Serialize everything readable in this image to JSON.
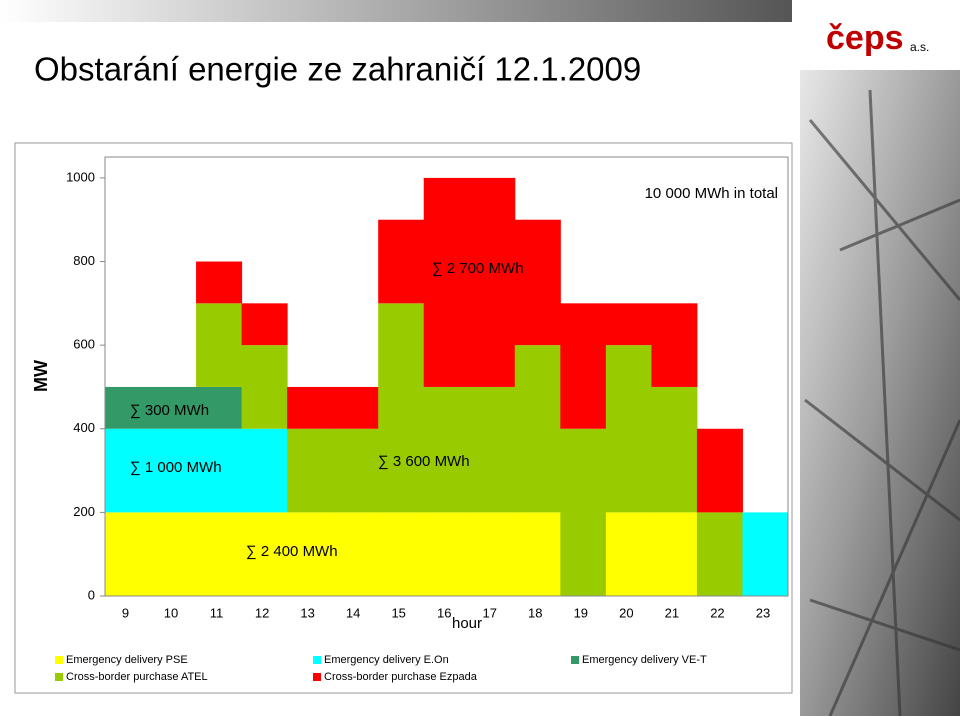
{
  "logo": {
    "text": "čeps",
    "suffix": "a.s."
  },
  "chart_data": {
    "type": "bar",
    "stacked": true,
    "title": "Obstarání energie ze zahraničí 12.1.2009",
    "y_label": "MW",
    "x_label": "hour",
    "categories": [
      9,
      10,
      11,
      12,
      13,
      14,
      15,
      16,
      17,
      18,
      19,
      20,
      21,
      22,
      23
    ],
    "series": [
      {
        "name": "Emergency delivery PSE",
        "color": "#ffff00",
        "values": [
          200,
          200,
          200,
          200,
          200,
          200,
          200,
          200,
          200,
          200,
          0,
          200,
          200,
          0,
          0
        ]
      },
      {
        "name": "Emergency delivery E.On",
        "color": "#00ffff",
        "values": [
          200,
          200,
          200,
          200,
          0,
          0,
          0,
          0,
          0,
          0,
          0,
          0,
          0,
          0,
          200
        ]
      },
      {
        "name": "Emergency delivery VE-T",
        "color": "#339966",
        "values": [
          100,
          100,
          100,
          0,
          0,
          0,
          0,
          0,
          0,
          0,
          0,
          0,
          0,
          0,
          0
        ]
      },
      {
        "name": "Cross-border purchase ATEL",
        "color": "#99cc00",
        "values": [
          0,
          0,
          200,
          200,
          200,
          200,
          500,
          300,
          300,
          400,
          400,
          400,
          300,
          200,
          0
        ]
      },
      {
        "name": "Cross-border purchase Ezpada",
        "color": "#ff0000",
        "values": [
          0,
          0,
          100,
          100,
          100,
          100,
          200,
          500,
          500,
          300,
          300,
          100,
          200,
          200,
          0
        ]
      }
    ],
    "ylim": [
      0,
      1050
    ],
    "yticks": [
      0,
      200,
      400,
      600,
      800,
      1000
    ],
    "annotations": [
      "∑ 300 MWh",
      "∑ 1 000 MWh",
      "∑ 3 600 MWh",
      "∑ 2 400 MWh",
      "∑ 2 700 MWh",
      "10 000 MWh in total"
    ]
  }
}
